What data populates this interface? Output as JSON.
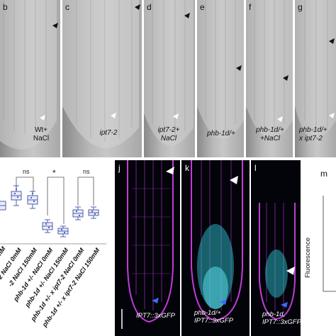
{
  "top_panels": [
    {
      "letter": "b",
      "caption": [
        "Wt+",
        "NaCl"
      ],
      "caption_italic": false
    },
    {
      "letter": "c",
      "caption": [
        "ipt7-2"
      ],
      "caption_italic": true
    },
    {
      "letter": "d",
      "caption": [
        "ipt7-2+",
        "NaCl"
      ],
      "caption_italic": true
    },
    {
      "letter": "e",
      "caption": [
        "phb-1d/+"
      ],
      "caption_italic": true
    },
    {
      "letter": "f",
      "caption": [
        "phb-1d/+",
        "+NaCl"
      ],
      "caption_italic": true
    },
    {
      "letter": "g",
      "caption": [
        "phb-1d/+",
        "x ipt7-2"
      ],
      "caption_italic": true
    }
  ],
  "chart": {
    "significance": [
      "ns",
      "*",
      "ns"
    ],
    "x_labels": [
      "-2 NaCl 0mM",
      "-2 NaCl 150mM",
      "phb-1d +/- NaCl 0mM",
      "phb-1d +/- NaCl 150mM",
      "phb-1d +/- x ipt7-2 NaCl 0mM",
      "phb-1d +/- x ipt7-2 NaCl 150mM"
    ],
    "partial_labels": [
      "0mM",
      "0mM"
    ]
  },
  "chart_data": {
    "type": "box",
    "categories": [
      "-2 NaCl 0mM",
      "-2 NaCl 150mM",
      "phb-1d +/- NaCl 0mM",
      "phb-1d +/- NaCl 150mM",
      "phb-1d +/- x ipt7-2 NaCl 0mM",
      "phb-1d +/- x ipt7-2 NaCl 150mM"
    ],
    "annotations": [
      "ns",
      "*",
      "ns"
    ],
    "grid": false
  },
  "fluor_panels": [
    {
      "letter": "j",
      "caption": [
        "IPT7::3xGFP"
      ]
    },
    {
      "letter": "k",
      "caption": [
        "phb-1d/+",
        "IPT7::3xGFP"
      ]
    },
    {
      "letter": "l",
      "caption": [
        "phb-1d,",
        "IPT7::3xGFP"
      ]
    }
  ],
  "panel_m": {
    "letter": "m",
    "ylabel": "Fluorescence"
  }
}
